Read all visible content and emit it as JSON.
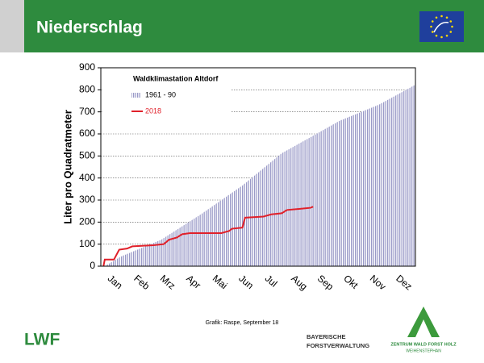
{
  "header": {
    "title": "Niederschlag"
  },
  "chart_data": {
    "type": "area-line",
    "legend_title": "Waldklimastation Altdorf",
    "y_label": "Liter pro Quadratmeter",
    "categories": [
      "Jan",
      "Feb",
      "Mrz",
      "Apr",
      "Mai",
      "Jun",
      "Jul",
      "Aug",
      "Sep",
      "Okt",
      "Nov",
      "Dez"
    ],
    "xlim": [
      0,
      12
    ],
    "ylim": [
      0,
      900
    ],
    "yticks": [
      0,
      100,
      200,
      300,
      400,
      500,
      600,
      700,
      800,
      900
    ],
    "grid": true,
    "series": [
      {
        "name": "1961 - 90",
        "color": "#9a9ac8",
        "kind": "area",
        "x": [
          0.15,
          0.77,
          2.3,
          3.85,
          5.4,
          6.9,
          8.0,
          9.1,
          10.6,
          12
        ],
        "values": [
          0,
          44,
          120,
          238,
          366,
          512,
          585,
          659,
          732,
          823
        ]
      },
      {
        "name": "2018",
        "color": "#e0202a",
        "kind": "line",
        "x": [
          0.1,
          0.15,
          0.5,
          0.7,
          1.0,
          1.2,
          2.0,
          2.4,
          2.6,
          2.9,
          3.1,
          3.4,
          4.6,
          4.9,
          5.0,
          5.4,
          5.5,
          6.2,
          6.5,
          6.9,
          7.1,
          7.6,
          8.0,
          8.1
        ],
        "values": [
          0,
          30,
          30,
          75,
          80,
          90,
          95,
          100,
          120,
          130,
          145,
          150,
          150,
          160,
          170,
          175,
          220,
          225,
          235,
          240,
          255,
          260,
          265,
          270
        ]
      }
    ]
  },
  "footer": {
    "credit": "Grafik: Raspe, September 18",
    "lwf": "LWF",
    "bayern_1": "BAYERISCHE",
    "bayern_2": "FORSTVERWALTUNG",
    "zentrum_1": "ZENTRUM WALD FORST HOLZ",
    "zentrum_2": "WEIHENSTEPHAN"
  }
}
